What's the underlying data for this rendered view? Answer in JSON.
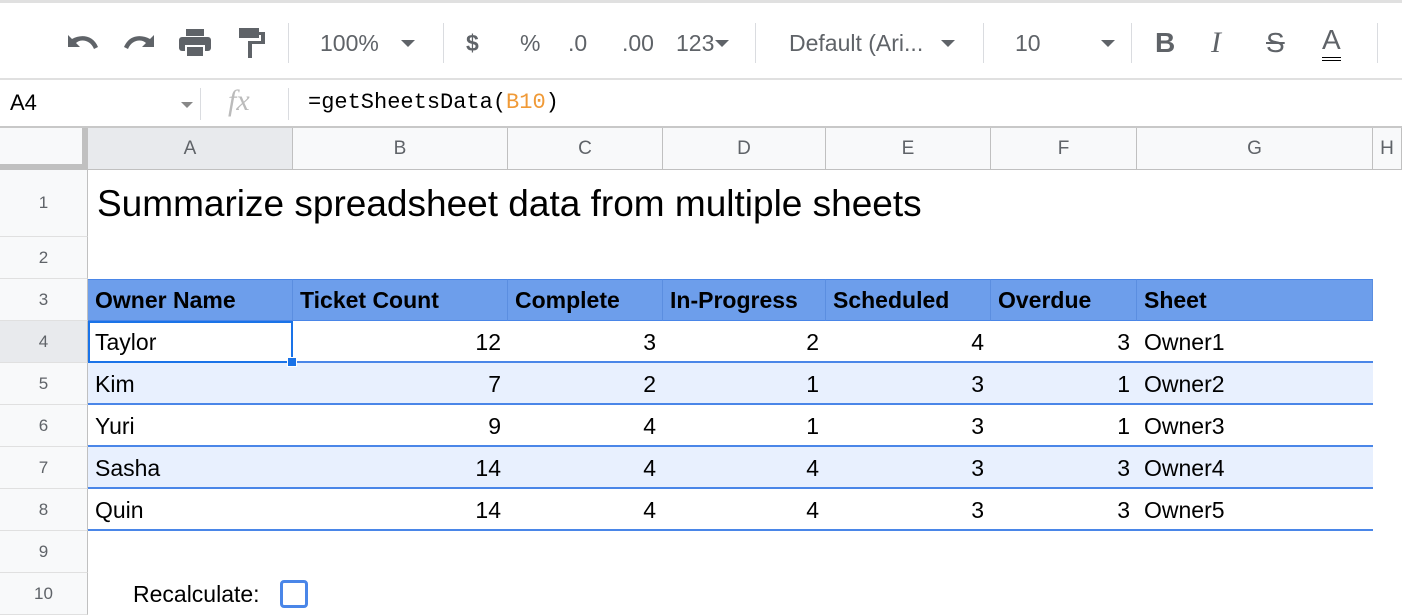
{
  "toolbar": {
    "zoom": "100%",
    "currency": "$",
    "percent": "%",
    "dec_decrease": ".0",
    "dec_increase": ".00",
    "more_formats": "123",
    "font": "Default (Ari...",
    "font_size": "10",
    "bold": "B",
    "italic": "I",
    "strike": "S",
    "text_color": "A"
  },
  "formula_bar": {
    "cell_ref": "A4",
    "fx": "fx",
    "formula_prefix": "=getSheetsData(",
    "formula_ref": "B10",
    "formula_suffix": ")",
    "ref_color": "#f09a37"
  },
  "columns": [
    "A",
    "B",
    "C",
    "D",
    "E",
    "F",
    "G",
    "H"
  ],
  "rows": [
    "1",
    "2",
    "3",
    "4",
    "5",
    "6",
    "7",
    "8",
    "9",
    "10"
  ],
  "title": "Summarize spreadsheet data from multiple sheets",
  "table": {
    "headers": [
      "Owner Name",
      "Ticket Count",
      "Complete",
      "In-Progress",
      "Scheduled",
      "Overdue",
      "Sheet"
    ],
    "rows": [
      [
        "Taylor",
        "12",
        "3",
        "2",
        "4",
        "3",
        "Owner1"
      ],
      [
        "Kim",
        "7",
        "2",
        "1",
        "3",
        "1",
        "Owner2"
      ],
      [
        "Yuri",
        "9",
        "4",
        "1",
        "3",
        "1",
        "Owner3"
      ],
      [
        "Sasha",
        "14",
        "4",
        "4",
        "3",
        "3",
        "Owner4"
      ],
      [
        "Quin",
        "14",
        "4",
        "4",
        "3",
        "3",
        "Owner5"
      ]
    ]
  },
  "recalculate": {
    "label": "Recalculate:",
    "checked": false
  },
  "colors": {
    "header_bg": "#6d9eeb",
    "band_bg": "#e8f0fe",
    "selection": "#1a73e8"
  }
}
